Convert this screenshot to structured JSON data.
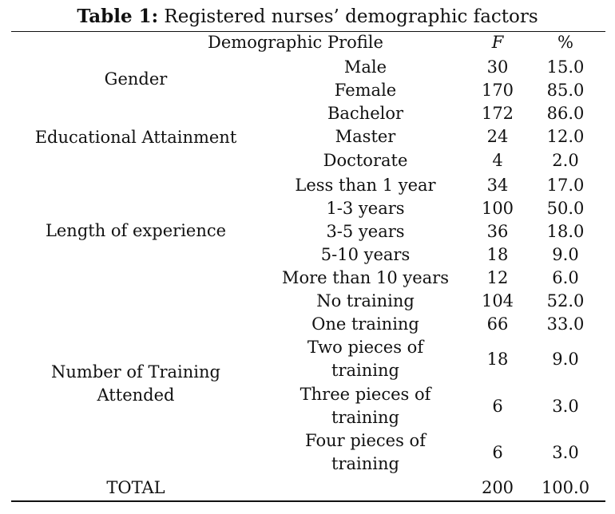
{
  "title": {
    "label": "Table 1:",
    "text": "Registered nurses’ demographic factors"
  },
  "headers": {
    "profile": "Demographic Profile",
    "f": "F",
    "pct": "%"
  },
  "groups": [
    {
      "name": "Gender",
      "rows": [
        {
          "label": "Male",
          "f": "30",
          "pct": "15.0"
        },
        {
          "label": "Female",
          "f": "170",
          "pct": "85.0"
        }
      ]
    },
    {
      "name": "Educational Attainment",
      "rows": [
        {
          "label": "Bachelor",
          "f": "172",
          "pct": "86.0"
        },
        {
          "label": "Master",
          "f": "24",
          "pct": "12.0"
        },
        {
          "label": "Doctorate",
          "f": "4",
          "pct": "2.0"
        }
      ]
    },
    {
      "name": "Length of experience",
      "rows": [
        {
          "label": "Less than 1 year",
          "f": "34",
          "pct": "17.0"
        },
        {
          "label": "1-3 years",
          "f": "100",
          "pct": "50.0"
        },
        {
          "label": "3-5 years",
          "f": "36",
          "pct": "18.0"
        },
        {
          "label": "5-10 years",
          "f": "18",
          "pct": "9.0"
        },
        {
          "label": "More than 10 years",
          "f": "12",
          "pct": "6.0"
        }
      ]
    },
    {
      "name": "Number of Training Attended",
      "rows": [
        {
          "label": "No training",
          "f": "104",
          "pct": "52.0"
        },
        {
          "label": "One training",
          "f": "66",
          "pct": "33.0"
        },
        {
          "label": "Two pieces of training",
          "f": "18",
          "pct": "9.0"
        },
        {
          "label": "Three pieces of training",
          "f": "6",
          "pct": "3.0"
        },
        {
          "label": "Four pieces of training",
          "f": "6",
          "pct": "3.0"
        }
      ]
    }
  ],
  "total": {
    "label": "TOTAL",
    "f": "200",
    "pct": "100.0"
  }
}
